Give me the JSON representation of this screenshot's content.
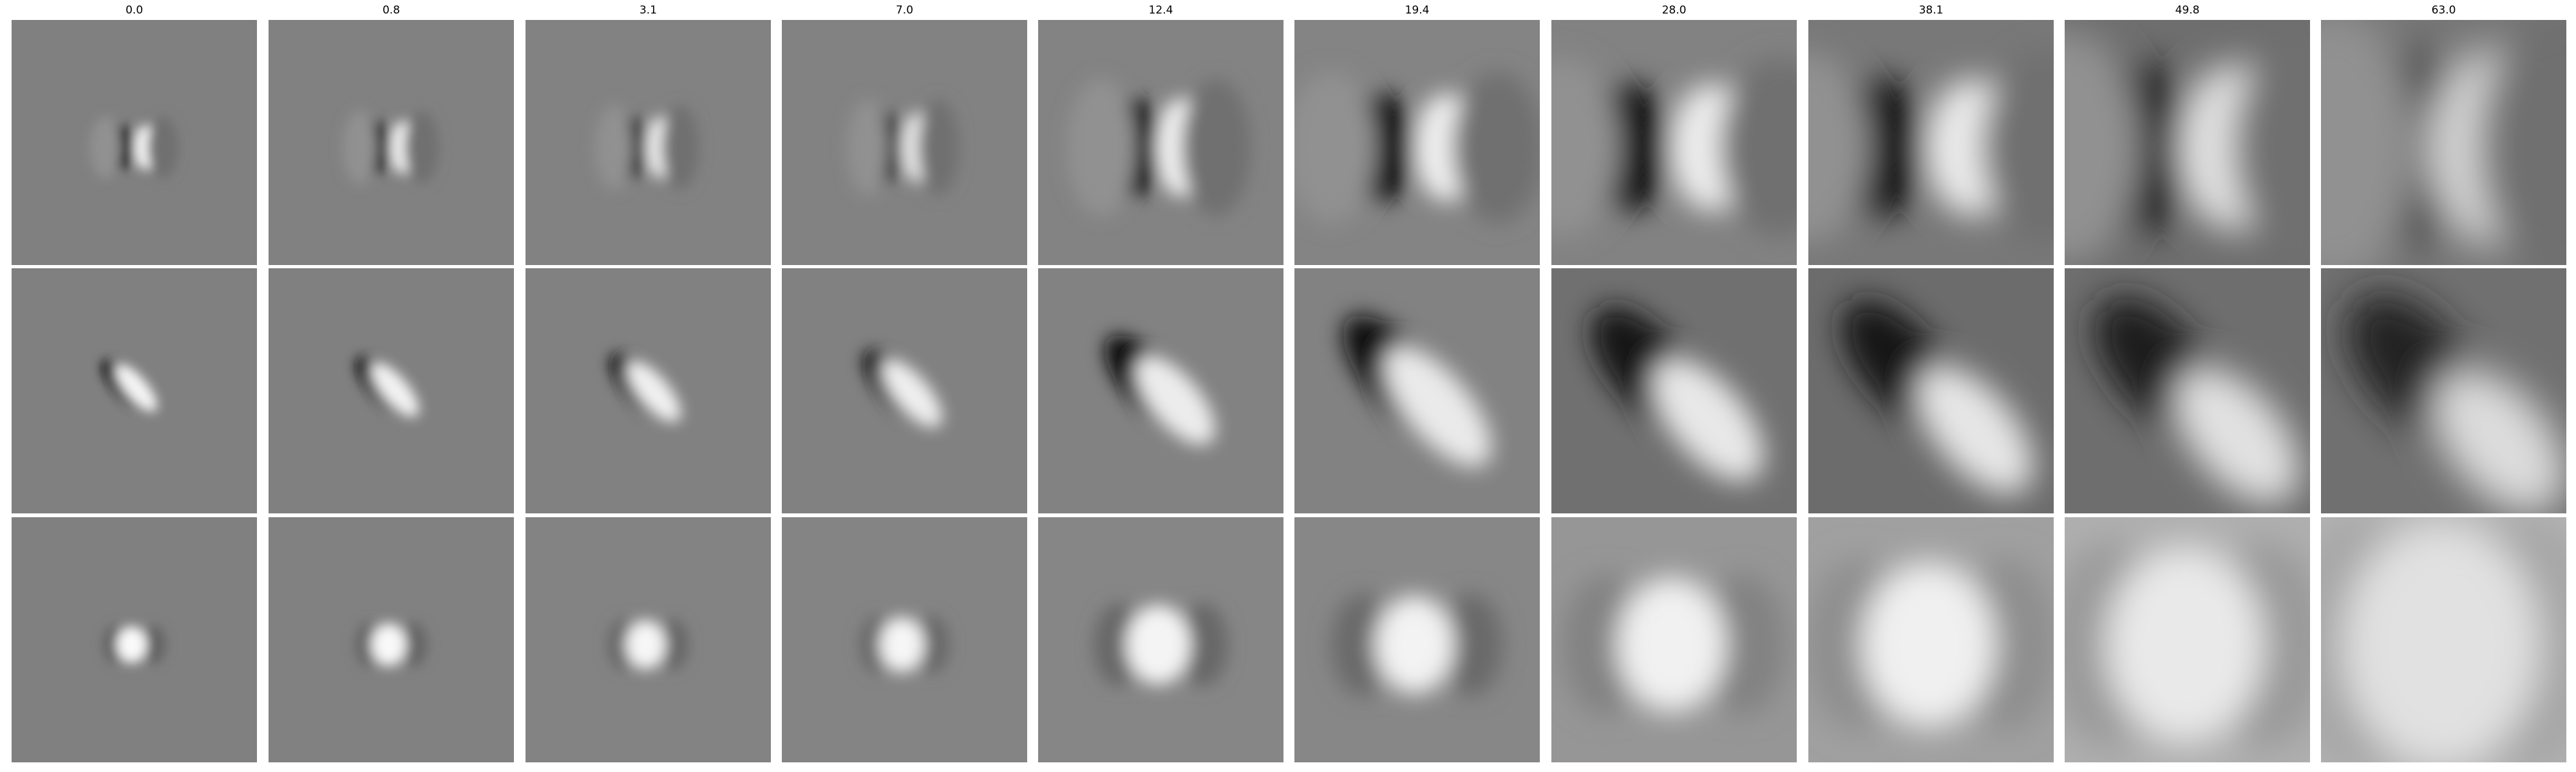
{
  "figure": {
    "columns": [
      "0.0",
      "0.8",
      "3.1",
      "7.0",
      "12.4",
      "19.4",
      "28.0",
      "38.1",
      "49.8",
      "63.0"
    ],
    "rows": 3,
    "background": "#808080"
  }
}
